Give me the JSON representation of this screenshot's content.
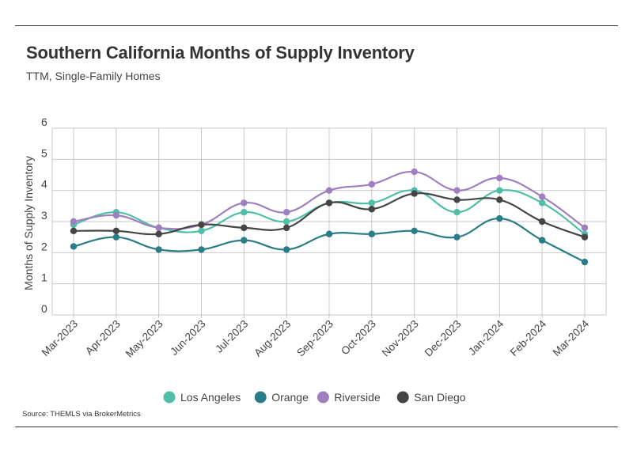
{
  "title": "Southern California Months of Supply Inventory",
  "subtitle": "TTM, Single-Family Homes",
  "source": "Source:  THEMLS via BrokerMetrics",
  "chart_data": {
    "type": "line",
    "title": "Southern California Months of Supply Inventory",
    "subtitle": "TTM, Single-Family Homes",
    "xlabel": "",
    "ylabel": "Months of Supply Inventory",
    "ylim": [
      0,
      6
    ],
    "yticks": [
      "0",
      "1",
      "2",
      "3",
      "4",
      "5",
      "6"
    ],
    "grid": true,
    "legend_position": "bottom",
    "categories": [
      "Mar-2023",
      "Apr-2023",
      "May-2023",
      "Jun-2023",
      "Jul-2023",
      "Aug-2023",
      "Sep-2023",
      "Oct-2023",
      "Nov-2023",
      "Dec-2023",
      "Jan-2024",
      "Feb-2024",
      "Mar-2024"
    ],
    "series": [
      {
        "name": "Los Angeles",
        "color": "#4fbfa8",
        "values": [
          2.9,
          3.3,
          2.8,
          2.7,
          3.3,
          3.0,
          3.6,
          3.6,
          4.0,
          3.3,
          4.0,
          3.6,
          2.6
        ]
      },
      {
        "name": "Orange",
        "color": "#2a7c86",
        "values": [
          2.2,
          2.5,
          2.1,
          2.1,
          2.4,
          2.1,
          2.6,
          2.6,
          2.7,
          2.5,
          3.1,
          2.4,
          1.7
        ]
      },
      {
        "name": "Riverside",
        "color": "#a07fc0",
        "values": [
          3.0,
          3.2,
          2.8,
          2.9,
          3.6,
          3.3,
          4.0,
          4.2,
          4.6,
          4.0,
          4.4,
          3.8,
          2.8
        ]
      },
      {
        "name": "San Diego",
        "color": "#454545",
        "values": [
          2.7,
          2.7,
          2.6,
          2.9,
          2.8,
          2.8,
          3.6,
          3.4,
          3.9,
          3.7,
          3.7,
          3.0,
          2.5
        ]
      }
    ]
  }
}
